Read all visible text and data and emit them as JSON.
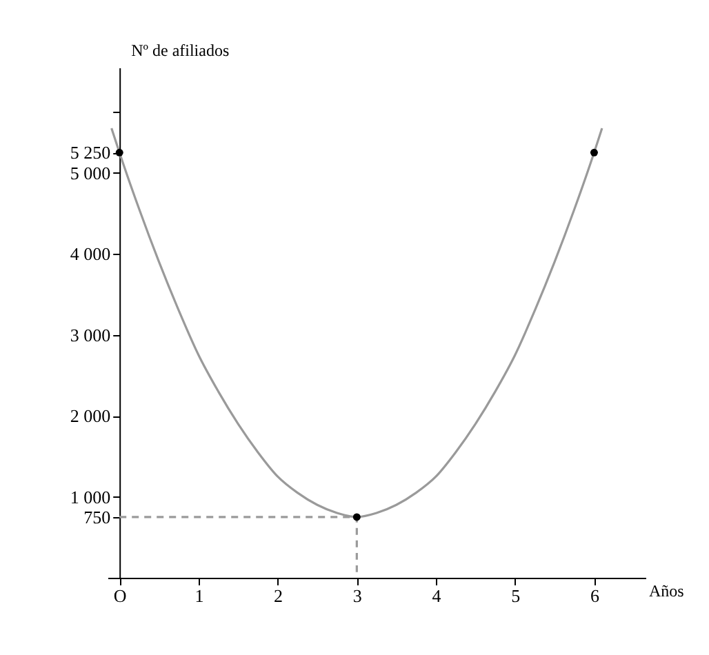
{
  "chart_data": {
    "type": "line",
    "xlabel": "Años",
    "ylabel": "Nº de afiliados",
    "xlim": [
      -0.15,
      6.65
    ],
    "ylim": [
      0,
      6300
    ],
    "xticks": [
      {
        "value": 0,
        "label": "O"
      },
      1,
      2,
      3,
      4,
      5,
      6
    ],
    "yticks": [
      {
        "value": 0,
        "label": null
      },
      {
        "value": 750,
        "label": "750"
      },
      {
        "value": 1000,
        "label": "1 000"
      },
      {
        "value": 2000,
        "label": "2 000"
      },
      {
        "value": 3000,
        "label": "3 000"
      },
      {
        "value": 4000,
        "label": "4 000"
      },
      {
        "value": 5000,
        "label": "5 000"
      },
      {
        "value": 5250,
        "label": "5 250"
      },
      {
        "value": 5750,
        "label": null
      }
    ],
    "grid": false,
    "series": [
      {
        "color": "#9a9a9a",
        "line_style": "solid",
        "x": [
          -0.1,
          0,
          0.25,
          0.5,
          0.75,
          1,
          1.25,
          1.5,
          1.75,
          2,
          2.25,
          2.5,
          2.75,
          3,
          3.25,
          3.5,
          3.75,
          4,
          4.25,
          4.5,
          4.75,
          5,
          5.25,
          5.5,
          5.75,
          6,
          6.1
        ],
        "values": [
          5550,
          5250,
          4550,
          3900,
          3300,
          2750,
          2300,
          1900,
          1550,
          1250,
          1050,
          900,
          800,
          750,
          800,
          900,
          1050,
          1250,
          1550,
          1900,
          2300,
          2750,
          3300,
          3900,
          4550,
          5250,
          5550
        ]
      },
      {
        "type": "line",
        "color": "#9a9a9a",
        "line_style": "dashed",
        "x": [
          0,
          3,
          3
        ],
        "values": [
          750,
          750,
          0
        ]
      },
      {
        "type": "scatter",
        "color": "#000000",
        "marker": "circle",
        "x": [
          0,
          3,
          6
        ],
        "values": [
          5250,
          750,
          5250
        ]
      }
    ]
  }
}
